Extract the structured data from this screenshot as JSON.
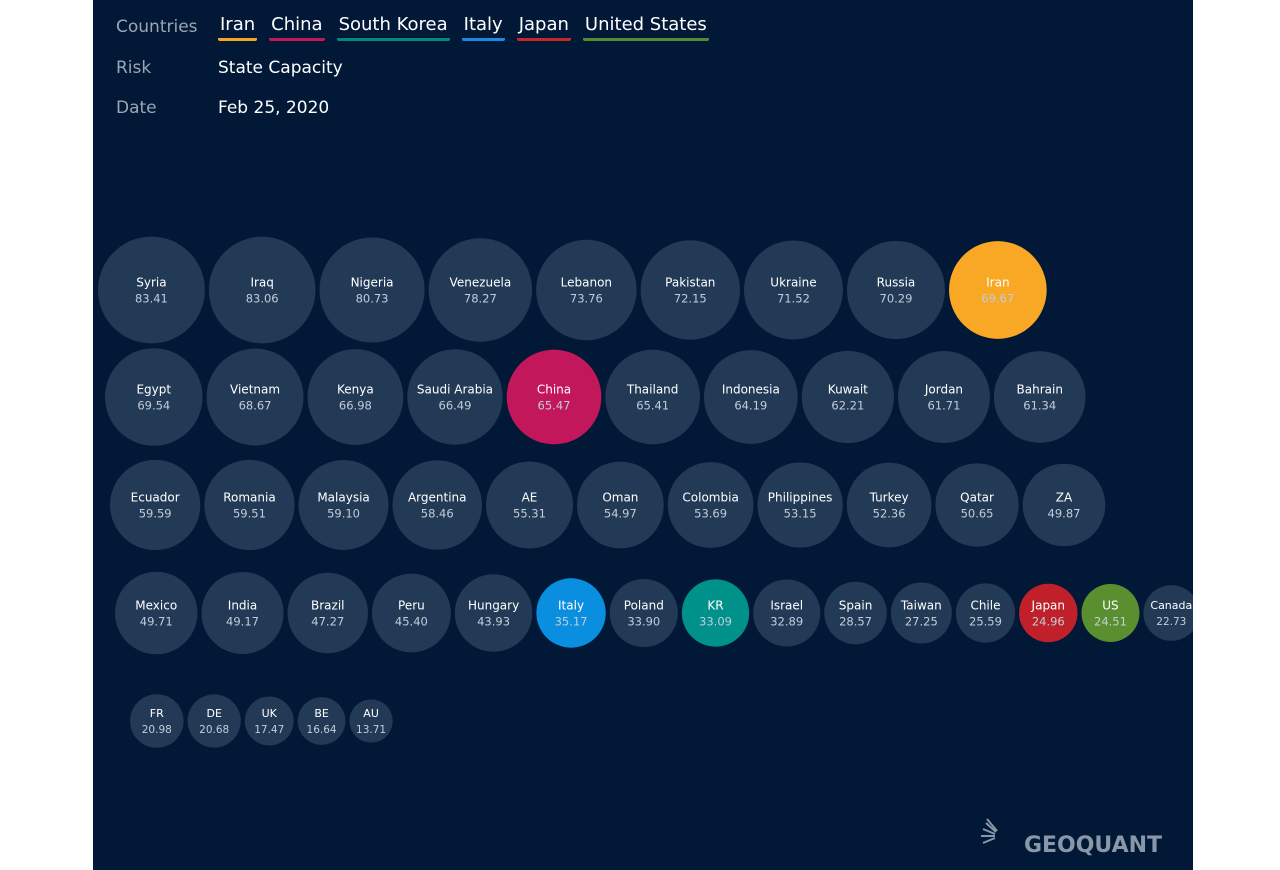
{
  "filters": {
    "countries_label": "Countries",
    "countries": [
      {
        "name": "Iran",
        "color": "#f5a623"
      },
      {
        "name": "China",
        "color": "#c2185b"
      },
      {
        "name": "South Korea",
        "color": "#00897b"
      },
      {
        "name": "Italy",
        "color": "#1e88e5"
      },
      {
        "name": "Japan",
        "color": "#c62828"
      },
      {
        "name": "United States",
        "color": "#558b2f"
      }
    ],
    "risk_label": "Risk",
    "risk": "State Capacity",
    "date_label": "Date",
    "date": "Feb 25, 2020"
  },
  "chart_data": {
    "type": "bubble",
    "categories": [
      "Syria",
      "Iraq",
      "Nigeria",
      "Venezuela",
      "Lebanon",
      "Pakistan",
      "Ukraine",
      "Russia",
      "Iran",
      "Egypt",
      "Vietnam",
      "Kenya",
      "Saudi Arabia",
      "China",
      "Thailand",
      "Indonesia",
      "Kuwait",
      "Jordan",
      "Bahrain",
      "Ecuador",
      "Romania",
      "Malaysia",
      "Argentina",
      "AE",
      "Oman",
      "Colombia",
      "Philippines",
      "Turkey",
      "Qatar",
      "ZA",
      "Mexico",
      "India",
      "Brazil",
      "Peru",
      "Hungary",
      "Italy",
      "Poland",
      "KR",
      "Israel",
      "Spain",
      "Taiwan",
      "Chile",
      "Japan",
      "US",
      "Canada",
      "FR",
      "DE",
      "UK",
      "BE",
      "AU"
    ],
    "values": [
      83.41,
      83.06,
      80.73,
      78.27,
      73.76,
      72.15,
      71.52,
      70.29,
      69.67,
      69.54,
      68.67,
      66.98,
      66.49,
      65.47,
      65.41,
      64.19,
      62.21,
      61.71,
      61.34,
      59.59,
      59.51,
      59.1,
      58.46,
      55.31,
      54.97,
      53.69,
      53.15,
      52.36,
      50.65,
      49.87,
      49.71,
      49.17,
      47.27,
      45.4,
      43.93,
      35.17,
      33.9,
      33.09,
      32.89,
      28.57,
      27.25,
      25.59,
      24.96,
      24.51,
      22.73,
      20.98,
      20.68,
      17.47,
      16.64,
      13.71
    ],
    "value_labels": [
      "83.41",
      "83.06",
      "80.73",
      "78.27",
      "73.76",
      "72.15",
      "71.52",
      "70.29",
      "69.67",
      "69.54",
      "68.67",
      "66.98",
      "66.49",
      "65.47",
      "65.41",
      "64.19",
      "62.21",
      "61.71",
      "61.34",
      "59.59",
      "59.51",
      "59.10",
      "58.46",
      "55.31",
      "54.97",
      "53.69",
      "53.15",
      "52.36",
      "50.65",
      "49.87",
      "49.71",
      "49.17",
      "47.27",
      "45.40",
      "43.93",
      "35.17",
      "33.90",
      "33.09",
      "32.89",
      "28.57",
      "27.25",
      "25.59",
      "24.96",
      "24.51",
      "22.73",
      "20.98",
      "20.68",
      "17.47",
      "16.64",
      "13.71"
    ],
    "colors": [
      "#233a56",
      "#233a56",
      "#233a56",
      "#233a56",
      "#233a56",
      "#233a56",
      "#233a56",
      "#233a56",
      "#f9a825",
      "#233a56",
      "#233a56",
      "#233a56",
      "#233a56",
      "#c2185b",
      "#233a56",
      "#233a56",
      "#233a56",
      "#233a56",
      "#233a56",
      "#233a56",
      "#233a56",
      "#233a56",
      "#233a56",
      "#233a56",
      "#233a56",
      "#233a56",
      "#233a56",
      "#233a56",
      "#233a56",
      "#233a56",
      "#233a56",
      "#233a56",
      "#233a56",
      "#233a56",
      "#233a56",
      "#0a8fe0",
      "#233a56",
      "#00918a",
      "#233a56",
      "#233a56",
      "#233a56",
      "#233a56",
      "#c0202a",
      "#5a8f2f",
      "#233a56",
      "#233a56",
      "#233a56",
      "#233a56",
      "#233a56",
      "#233a56"
    ]
  },
  "logo": "GEOQUANT"
}
